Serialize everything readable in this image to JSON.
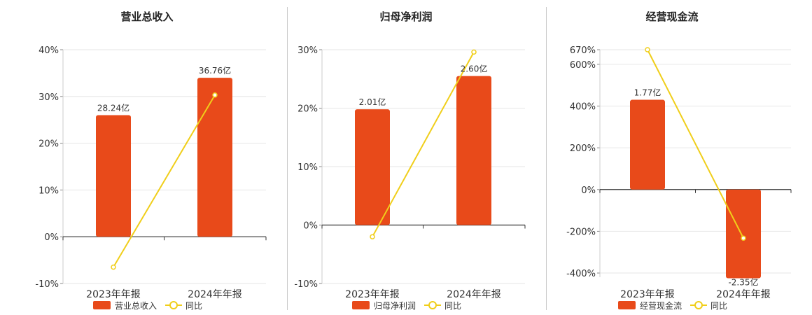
{
  "colors": {
    "bar": "#E84A1A",
    "line": "#F0CE1A",
    "grid": "#e6e6e6",
    "axis": "#333333"
  },
  "chart_data": [
    {
      "type": "bar",
      "title": "营业总收入",
      "categories": [
        "2023年年报",
        "2024年年报"
      ],
      "series": [
        {
          "name": "营业总收入",
          "type": "bar",
          "values": [
            26.0,
            34.0
          ],
          "labels": [
            "28.24亿",
            "36.76亿"
          ]
        },
        {
          "name": "同比",
          "type": "line",
          "values": [
            -6.5,
            30.3
          ]
        }
      ],
      "ylim": [
        -10,
        40
      ],
      "yticks": [
        -10,
        0,
        10,
        20,
        30,
        40
      ],
      "ytick_labels": [
        "-10%",
        "0%",
        "10%",
        "20%",
        "30%",
        "40%"
      ],
      "grid": true,
      "legend": "bottom"
    },
    {
      "type": "bar",
      "title": "归母净利润",
      "categories": [
        "2023年年报",
        "2024年年报"
      ],
      "series": [
        {
          "name": "归母净利润",
          "type": "bar",
          "values": [
            19.8,
            25.5
          ],
          "labels": [
            "2.01亿",
            "2.60亿"
          ]
        },
        {
          "name": "同比",
          "type": "line",
          "values": [
            -2.0,
            29.6
          ]
        }
      ],
      "ylim": [
        -10,
        30
      ],
      "yticks": [
        -10,
        0,
        10,
        20,
        30
      ],
      "ytick_labels": [
        "-10%",
        "0%",
        "10%",
        "20%",
        "30%"
      ],
      "grid": true,
      "legend": "bottom"
    },
    {
      "type": "bar",
      "title": "经营现金流",
      "categories": [
        "2023年年报",
        "2024年年报"
      ],
      "series": [
        {
          "name": "经营现金流",
          "type": "bar",
          "values": [
            430,
            -425
          ],
          "labels": [
            "1.77亿",
            "-2.35亿"
          ]
        },
        {
          "name": "同比",
          "type": "line",
          "values": [
            670,
            -233
          ]
        }
      ],
      "ylim": [
        -420,
        670
      ],
      "yticks": [
        -400,
        -200,
        0,
        200,
        400,
        600,
        670
      ],
      "ytick_labels": [
        "-400%",
        "-200%",
        "0%",
        "200%",
        "400%",
        "600%",
        "670%"
      ],
      "grid": true,
      "legend": "bottom"
    }
  ]
}
